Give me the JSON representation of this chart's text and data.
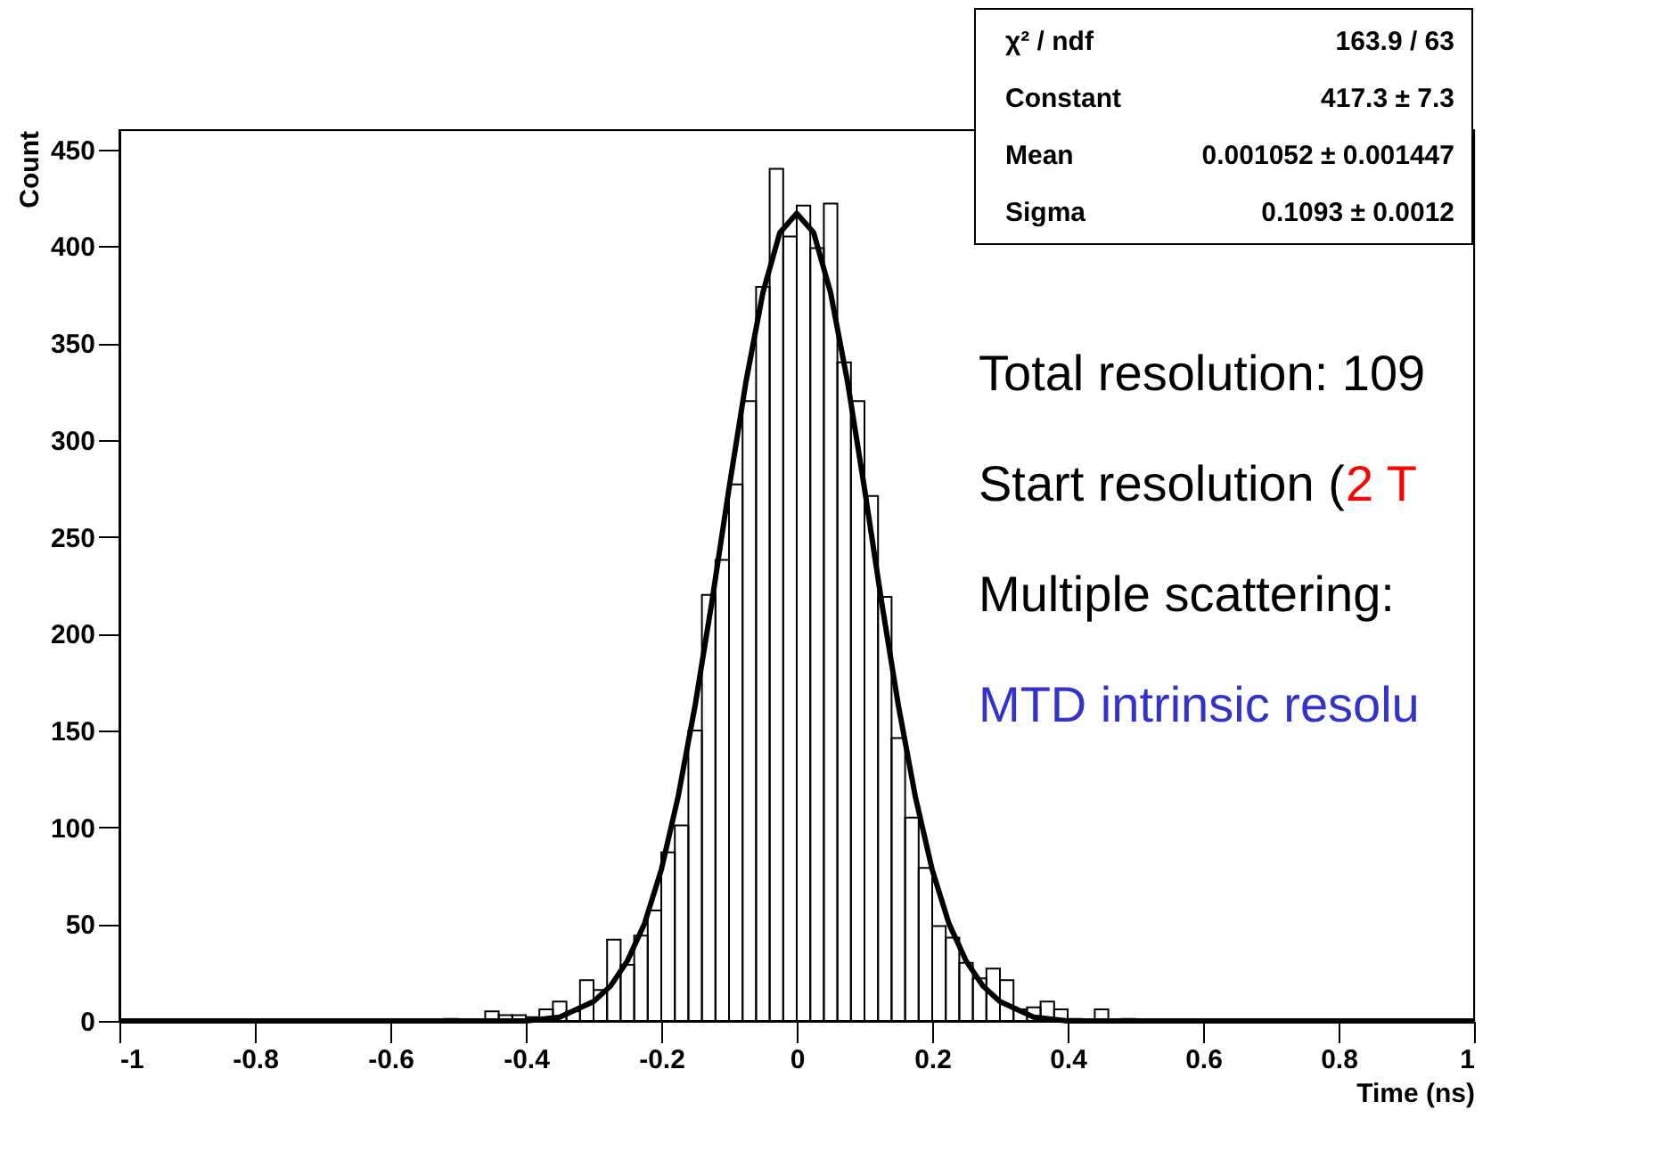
{
  "chart_data": {
    "type": "histogram",
    "xlabel": "Time (ns)",
    "ylabel": "Count",
    "bins": [
      -1,
      -0.98,
      -0.96,
      -0.94,
      -0.92,
      -0.9,
      -0.88,
      -0.86,
      -0.84,
      -0.82,
      -0.8,
      -0.78,
      -0.76,
      -0.74,
      -0.72,
      -0.7,
      -0.68,
      -0.66,
      -0.64,
      -0.62,
      -0.6,
      -0.58,
      -0.56,
      -0.54,
      -0.52,
      -0.5,
      -0.48,
      -0.46,
      -0.44,
      -0.42,
      -0.4,
      -0.38,
      -0.36,
      -0.34,
      -0.32,
      -0.3,
      -0.28,
      -0.26,
      -0.24,
      -0.22,
      -0.2,
      -0.18,
      -0.16,
      -0.14,
      -0.12,
      -0.1,
      -0.08,
      -0.06,
      -0.04,
      -0.02,
      0,
      0.02,
      0.04,
      0.06,
      0.08,
      0.1,
      0.12,
      0.14,
      0.16,
      0.18,
      0.2,
      0.22,
      0.24,
      0.26,
      0.28,
      0.3,
      0.32,
      0.34,
      0.36,
      0.38,
      0.4,
      0.42,
      0.44,
      0.46,
      0.48,
      0.5,
      0.52,
      0.54,
      0.56,
      0.58,
      0.6,
      0.62,
      0.64,
      0.66,
      0.68,
      0.7,
      0.72,
      0.74,
      0.76,
      0.78,
      0.8,
      0.82,
      0.84,
      0.86,
      0.88,
      0.9,
      0.92,
      0.94,
      0.96,
      0.98,
      1
    ],
    "values": [
      0,
      0,
      0,
      0,
      0,
      0,
      0,
      0,
      0,
      0,
      0,
      0,
      0,
      0,
      0,
      0,
      0,
      0,
      0,
      0,
      0,
      0,
      0,
      0,
      1,
      0,
      0,
      5,
      3,
      3,
      2,
      6,
      10,
      5,
      21,
      16,
      42,
      29,
      44,
      57,
      87,
      101,
      150,
      220,
      238,
      277,
      320,
      379,
      440,
      405,
      421,
      399,
      422,
      340,
      320,
      271,
      219,
      146,
      105,
      79,
      49,
      43,
      30,
      22,
      27,
      21,
      6,
      7,
      10,
      6,
      1,
      0,
      6,
      0,
      1,
      0,
      0,
      0,
      0,
      0,
      0,
      0,
      0,
      0,
      0,
      0,
      0,
      0,
      0,
      0,
      0,
      0,
      0,
      0,
      0,
      0,
      0,
      0,
      0,
      0
    ],
    "color": "#000000",
    "series": [
      {
        "type": "line",
        "color": "#000000",
        "x": [
          -1,
          -0.5,
          -0.4,
          -0.35,
          -0.3,
          -0.275,
          -0.25,
          -0.225,
          -0.2,
          -0.175,
          -0.15,
          -0.125,
          -0.1,
          -0.075,
          -0.05,
          -0.025,
          0,
          0.025,
          0.05,
          0.075,
          0.1,
          0.125,
          0.15,
          0.175,
          0.2,
          0.225,
          0.25,
          0.275,
          0.3,
          0.35,
          0.4,
          0.5,
          1
        ],
        "values": [
          0,
          0,
          0,
          2,
          10,
          18,
          31,
          50,
          78,
          116,
          163,
          217,
          275,
          330,
          376,
          407,
          417,
          407,
          376,
          330,
          275,
          217,
          163,
          116,
          78,
          50,
          31,
          18,
          10,
          2,
          0,
          0,
          0
        ]
      }
    ],
    "xlim": [
      -1,
      1
    ],
    "xticks": [
      -1,
      -0.8,
      -0.6,
      -0.4,
      -0.2,
      0,
      0.2,
      0.4,
      0.6,
      0.8,
      1
    ],
    "ylim": [
      0,
      460
    ],
    "yticks": [
      0,
      50,
      100,
      150,
      200,
      250,
      300,
      350,
      400,
      450
    ],
    "grid": false,
    "annotations": [
      "χ² / ndf",
      "163.9 / 63",
      "Constant",
      "417.3 ± 7.3",
      "Mean",
      "0.001052 ± 0.001447",
      "Sigma",
      "0.1093 ± 0.0012",
      "Total resolution: 109",
      "Start resolution (",
      "2 T",
      "Multiple scattering:",
      "MTD intrinsic resolu"
    ]
  }
}
